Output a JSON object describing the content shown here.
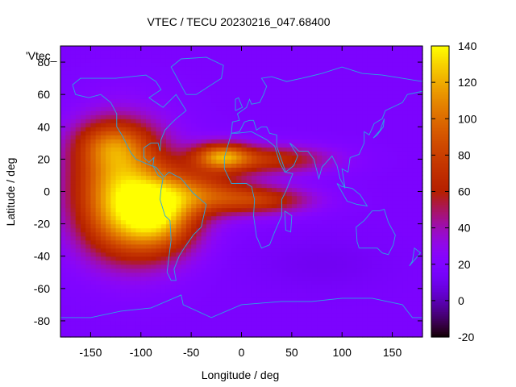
{
  "chart_data": {
    "type": "heatmap",
    "title": "VTEC / TECU 20230216_047.68400",
    "xlabel": "Longitude / deg",
    "ylabel": "Latitude / deg",
    "legend_key": "'Vtec_",
    "xlim": [
      -180,
      180
    ],
    "ylim": [
      -90,
      90
    ],
    "x_ticks": [
      -150,
      -100,
      -50,
      0,
      50,
      100,
      150
    ],
    "y_ticks": [
      -80,
      -60,
      -40,
      -20,
      0,
      20,
      40,
      60,
      80
    ],
    "x_tick_labels": [
      "-150",
      "-100",
      "-50",
      "0",
      "50",
      "100",
      "150"
    ],
    "y_tick_labels": [
      "-80",
      "-60",
      "-40",
      "-20",
      "0",
      "20",
      "40",
      "60",
      "80"
    ],
    "colorbar": {
      "range": [
        -20,
        140
      ],
      "ticks": [
        -20,
        0,
        20,
        40,
        60,
        80,
        100,
        120,
        140
      ],
      "tick_labels": [
        "-20",
        "0",
        "20",
        "40",
        "60",
        "80",
        "100",
        "120",
        "140"
      ],
      "colormap": "gnuplot-rgbformulae-7-5-15"
    },
    "background_value": 18,
    "features": [
      {
        "name": "main-enhancement-pacific",
        "lon": -120,
        "lat": 10,
        "peak": 85,
        "sigma_lon": 35,
        "sigma_lat": 22
      },
      {
        "name": "enhancement-south-pacific",
        "lon": -110,
        "lat": -20,
        "peak": 70,
        "sigma_lon": 35,
        "sigma_lat": 18
      },
      {
        "name": "enhancement-south-america",
        "lon": -75,
        "lat": -15,
        "peak": 55,
        "sigma_lon": 25,
        "sigma_lat": 15
      },
      {
        "name": "enhancement-atlantic-equator",
        "lon": -40,
        "lat": 0,
        "peak": 55,
        "sigma_lon": 35,
        "sigma_lat": 10
      },
      {
        "name": "north-crest-africa",
        "lon": -20,
        "lat": 22,
        "peak": 78,
        "sigma_lon": 20,
        "sigma_lat": 6
      },
      {
        "name": "north-crest-extension",
        "lon": 30,
        "lat": 20,
        "peak": 50,
        "sigma_lon": 40,
        "sigma_lat": 6
      },
      {
        "name": "south-crest-africa",
        "lon": 20,
        "lat": -5,
        "peak": 50,
        "sigma_lon": 35,
        "sigma_lat": 6
      },
      {
        "name": "north-pacific-tongue",
        "lon": -130,
        "lat": 30,
        "peak": 40,
        "sigma_lon": 25,
        "sigma_lat": 10
      }
    ]
  }
}
